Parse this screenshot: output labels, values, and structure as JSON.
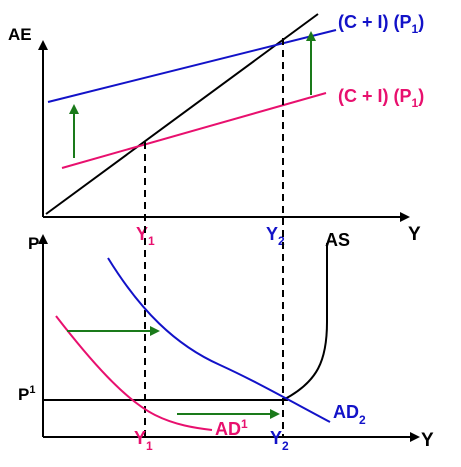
{
  "top_panel": {
    "y_axis_label": "AE",
    "x_axis_label": "Y",
    "blue_line_label": {
      "main": "(C + I) (P",
      "sub": "1",
      "close": ")"
    },
    "pink_line_label": {
      "main": "(C + I) (P",
      "sub": "1",
      "close": ")"
    },
    "y1_tick": {
      "main": "Y",
      "sub": "1"
    },
    "y2_tick": {
      "main": "Y",
      "sub": "2"
    }
  },
  "bottom_panel": {
    "y_axis_label": "P",
    "x_axis_label": "Y",
    "p1_label": {
      "main": "P",
      "sub": "1"
    },
    "as_label": "AS",
    "ad1_label": {
      "main": "AD",
      "sub": "1"
    },
    "ad2_label": {
      "main": "AD",
      "sub": "2"
    },
    "y1_tick": {
      "main": "Y",
      "sub": "1"
    },
    "y2_tick": {
      "main": "Y",
      "sub": "2"
    }
  },
  "colors": {
    "blue": "#1212c8",
    "pink": "#e8106e",
    "green": "#1a7a1a",
    "black": "#000000"
  }
}
